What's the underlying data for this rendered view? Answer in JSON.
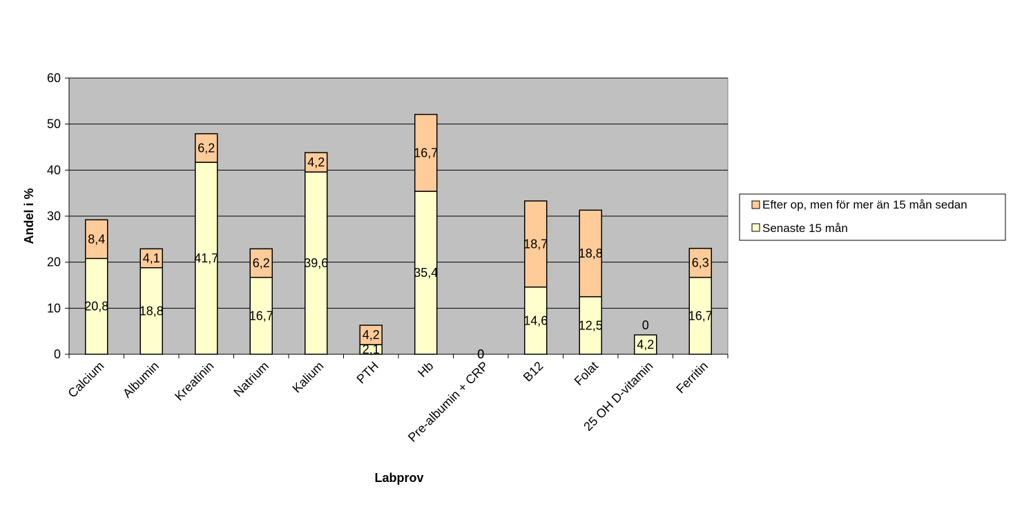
{
  "chart_data": {
    "type": "bar",
    "stacked": true,
    "title": "",
    "xlabel": "Labprov",
    "ylabel": "Andel i %",
    "ylim": [
      0,
      60
    ],
    "yticks": [
      0,
      10,
      20,
      30,
      40,
      50,
      60
    ],
    "grid": true,
    "legend_position": "right",
    "categories": [
      "Calcium",
      "Albumin",
      "Kreatinin",
      "Natrium",
      "Kalium",
      "PTH",
      "Hb",
      "Pre-albumin + CRP",
      "B12",
      "Folat",
      "25 OH D-vitamin",
      "Ferritin"
    ],
    "series": [
      {
        "name": "Senaste 15 mån",
        "color": "#FFFFCC",
        "values": [
          20.8,
          18.8,
          41.7,
          16.7,
          39.6,
          2.1,
          35.4,
          0,
          14.6,
          12.5,
          4.2,
          16.7
        ],
        "labels": [
          "20,8",
          "18,8",
          "41,7",
          "16,7",
          "39,6",
          "2,1",
          "35,4",
          "0",
          "14,6",
          "12,5",
          "4,2",
          "16,7"
        ]
      },
      {
        "name": "Efter op, men för mer än 15 mån sedan",
        "color": "#FFCC99",
        "values": [
          8.4,
          4.1,
          6.2,
          6.2,
          4.2,
          4.2,
          16.7,
          0,
          18.7,
          18.8,
          0,
          6.3
        ],
        "labels": [
          "8,4",
          "4,1",
          "6,2",
          "6,2",
          "4,2",
          "4,2",
          "16,7",
          "0",
          "18,7",
          "18,8",
          "0",
          "6,3"
        ]
      }
    ],
    "plot_background": "#C0C0C0"
  }
}
